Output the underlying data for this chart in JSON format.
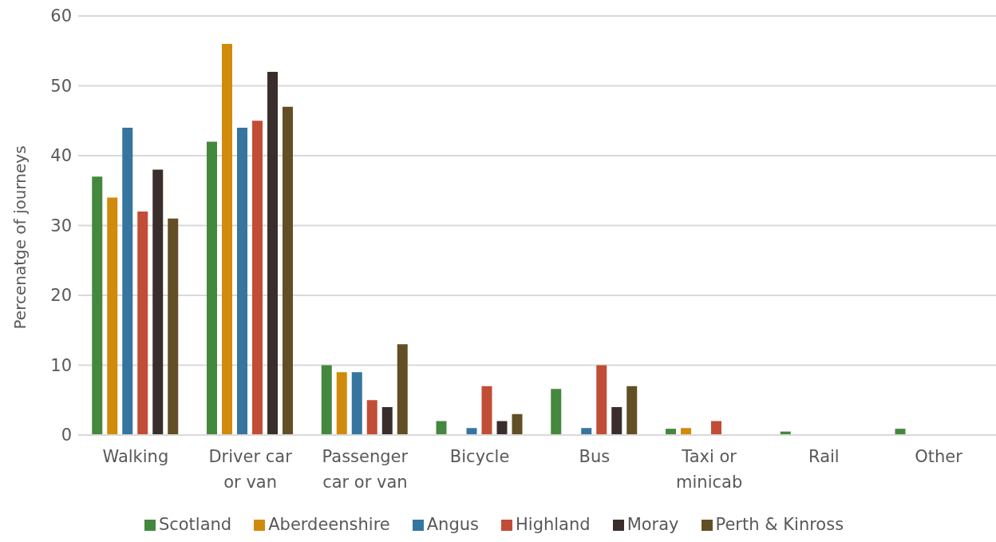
{
  "chart_data": {
    "type": "bar",
    "ylabel": "Percenatge of journeys",
    "categories": [
      "Walking",
      "Driver car or van",
      "Passenger car or van",
      "Bicycle",
      "Bus",
      "Taxi or minicab",
      "Rail",
      "Other"
    ],
    "series": [
      {
        "name": "Scotland",
        "color": "#44883e",
        "values": [
          37,
          42,
          10,
          2,
          6.6,
          0.9,
          0.5,
          0.9
        ]
      },
      {
        "name": "Aberdeenshire",
        "color": "#d08b0c",
        "values": [
          34,
          56,
          9,
          null,
          null,
          1,
          null,
          null
        ]
      },
      {
        "name": "Angus",
        "color": "#35759f",
        "values": [
          44,
          44,
          9,
          1,
          1,
          null,
          null,
          null
        ]
      },
      {
        "name": "Highland",
        "color": "#c24d36",
        "values": [
          32,
          45,
          5,
          7,
          10,
          2,
          null,
          null
        ]
      },
      {
        "name": "Moray",
        "color": "#3a2e2d",
        "values": [
          38,
          52,
          4,
          2,
          4,
          null,
          null,
          null
        ]
      },
      {
        "name": "Perth & Kinross",
        "color": "#634f25",
        "values": [
          31,
          47,
          13,
          3,
          7,
          null,
          null,
          null
        ]
      }
    ],
    "ylim": [
      0,
      60
    ],
    "yticks": [
      0,
      10,
      20,
      30,
      40,
      50,
      60
    ],
    "grid": "y",
    "legend": "bottom"
  }
}
